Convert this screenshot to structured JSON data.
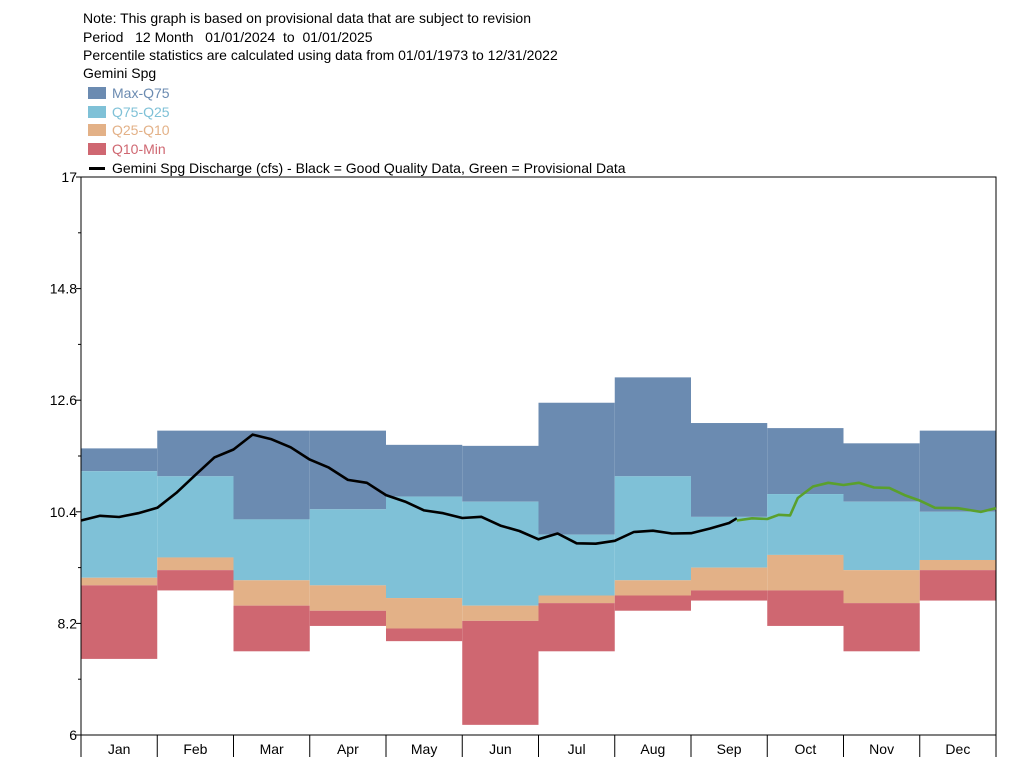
{
  "header": {
    "note": "Note: This graph is based on provisional data that are subject to revision",
    "period": "Period   12 Month   01/01/2024  to  01/01/2025",
    "percentile": "Percentile statistics are calculated using data from 01/01/1973 to 12/31/2022",
    "site": "Gemini Spg"
  },
  "legend": {
    "items": [
      {
        "label": "Max-Q75",
        "color": "#6b8bb1",
        "text_color": "#6b8bb1"
      },
      {
        "label": "Q75-Q25",
        "color": "#7fc1d7",
        "text_color": "#7fc1d7"
      },
      {
        "label": "Q25-Q10",
        "color": "#e3b187",
        "text_color": "#e3b187"
      },
      {
        "label": "Q10-Min",
        "color": "#cf6771",
        "text_color": "#cf6771"
      }
    ],
    "series_label": "Gemini Spg Discharge (cfs) - Black = Good Quality Data, Green = Provisional Data"
  },
  "chart_data": {
    "type": "area",
    "title": "",
    "xlabel": "",
    "ylabel": "",
    "ylim": [
      6,
      17
    ],
    "yticks": [
      "6",
      "8.2",
      "10.4",
      "12.6",
      "14.8",
      "17"
    ],
    "categories": [
      "Jan",
      "Feb",
      "Mar",
      "Apr",
      "May",
      "Jun",
      "Jul",
      "Aug",
      "Sep",
      "Oct",
      "Nov",
      "Dec"
    ],
    "percentile_bands": {
      "max": [
        11.65,
        12.0,
        12.0,
        12.0,
        11.72,
        11.7,
        12.55,
        13.05,
        12.15,
        12.05,
        11.75,
        12.0
      ],
      "q75": [
        11.2,
        11.1,
        10.25,
        10.45,
        10.7,
        10.6,
        9.95,
        11.1,
        10.3,
        10.75,
        10.6,
        10.4
      ],
      "q25": [
        9.1,
        9.5,
        9.05,
        8.95,
        8.7,
        8.55,
        8.75,
        9.05,
        9.3,
        9.55,
        9.25,
        9.45
      ],
      "q10": [
        8.95,
        9.25,
        8.55,
        8.45,
        8.1,
        8.25,
        8.6,
        8.75,
        8.85,
        8.85,
        8.6,
        9.25
      ],
      "min": [
        7.5,
        8.85,
        7.65,
        8.15,
        7.85,
        6.2,
        7.65,
        8.45,
        8.65,
        8.15,
        7.65,
        8.65
      ]
    },
    "series": [
      {
        "name": "Gemini Spg Discharge (cfs) - Good Quality Data",
        "color": "#000000",
        "x": [
          0,
          0.25,
          0.5,
          0.75,
          1.0,
          1.25,
          1.5,
          1.75,
          2.0,
          2.25,
          2.5,
          2.75,
          3.0,
          3.25,
          3.5,
          3.75,
          4.0,
          4.25,
          4.5,
          4.75,
          5.0,
          5.25,
          5.5,
          5.75,
          6.0,
          6.25,
          6.5,
          6.75,
          7.0,
          7.25,
          7.5,
          7.75,
          8.0,
          8.25,
          8.5,
          8.6
        ],
        "y": [
          10.25,
          10.3,
          10.32,
          10.35,
          10.5,
          10.75,
          11.15,
          11.45,
          11.65,
          11.9,
          11.85,
          11.65,
          11.45,
          11.25,
          11.05,
          10.95,
          10.75,
          10.58,
          10.45,
          10.35,
          10.3,
          10.28,
          10.15,
          10.0,
          9.88,
          9.95,
          9.8,
          9.75,
          9.85,
          9.98,
          10.05,
          9.95,
          10.0,
          10.05,
          10.2,
          10.25
        ]
      },
      {
        "name": "Gemini Spg Discharge (cfs) - Provisional Data",
        "color": "#5aa02c",
        "x": [
          8.6,
          8.8,
          9.0,
          9.15,
          9.3,
          9.4,
          9.6,
          9.8,
          10.0,
          10.2,
          10.4,
          10.6,
          10.8,
          11.0,
          11.2,
          11.5,
          11.8,
          12.0
        ],
        "y": [
          10.25,
          10.25,
          10.28,
          10.32,
          10.35,
          10.65,
          10.92,
          10.95,
          10.95,
          10.95,
          10.9,
          10.85,
          10.75,
          10.6,
          10.5,
          10.45,
          10.42,
          10.45
        ]
      }
    ],
    "grid": false,
    "legend": "top-left"
  }
}
